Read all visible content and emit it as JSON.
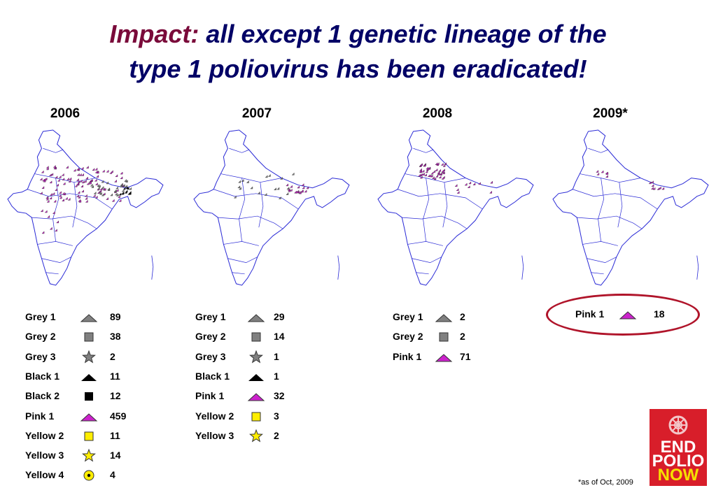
{
  "title": {
    "lead": "Impact:",
    "line1_rest": "all except 1 genetic lineage of the",
    "line2": "type 1 poliovirus has been eradicated!"
  },
  "panels": [
    {
      "year": "2006",
      "legend": [
        {
          "label": "Grey 1",
          "symbol": "grey-triangle-icon",
          "count": "89"
        },
        {
          "label": "Grey 2",
          "symbol": "grey-square-icon",
          "count": "38"
        },
        {
          "label": "Grey 3",
          "symbol": "grey-star-icon",
          "count": "2"
        },
        {
          "label": "Black 1",
          "symbol": "black-triangle-icon",
          "count": "11"
        },
        {
          "label": "Black 2",
          "symbol": "black-square-icon",
          "count": "12"
        },
        {
          "label": "Pink 1",
          "symbol": "pink-triangle-icon",
          "count": "459"
        },
        {
          "label": "Yellow 2",
          "symbol": "yellow-square-icon",
          "count": "11"
        },
        {
          "label": "Yellow 3",
          "symbol": "yellow-star-icon",
          "count": "14"
        },
        {
          "label": "Yellow 4",
          "symbol": "yellow-target-icon",
          "count": "4"
        }
      ]
    },
    {
      "year": "2007",
      "legend": [
        {
          "label": "Grey 1",
          "symbol": "grey-triangle-icon",
          "count": "29"
        },
        {
          "label": "Grey 2",
          "symbol": "grey-square-icon",
          "count": "14"
        },
        {
          "label": "Grey 3",
          "symbol": "grey-star-icon",
          "count": "1"
        },
        {
          "label": "Black 1",
          "symbol": "black-triangle-icon",
          "count": "1"
        },
        {
          "label": "Pink 1",
          "symbol": "pink-triangle-icon",
          "count": "32"
        },
        {
          "label": "Yellow 2",
          "symbol": "yellow-square-icon",
          "count": "3"
        },
        {
          "label": "Yellow 3",
          "symbol": "yellow-star-icon",
          "count": "2"
        }
      ]
    },
    {
      "year": "2008",
      "legend": [
        {
          "label": "Grey 1",
          "symbol": "grey-triangle-icon",
          "count": "2"
        },
        {
          "label": "Grey 2",
          "symbol": "grey-square-icon",
          "count": "2"
        },
        {
          "label": "Pink 1",
          "symbol": "pink-triangle-icon",
          "count": "71"
        }
      ]
    },
    {
      "year": "2009*",
      "legend": [
        {
          "label": "Pink 1",
          "symbol": "pink-triangle-icon",
          "count": "18"
        }
      ]
    }
  ],
  "footnote": "*as of Oct, 2009",
  "logo": {
    "line1": "END",
    "line2": "POLIO",
    "line3": "NOW"
  },
  "colors": {
    "title_lead": "#7a0a3a",
    "title_text": "#000066",
    "map_border": "#2b2bd6",
    "pink": "#cc22cc",
    "grey": "#808080",
    "yellow": "#ffee00",
    "highlight_oval": "#b0142a",
    "logo_bg": "#d81e2a"
  }
}
